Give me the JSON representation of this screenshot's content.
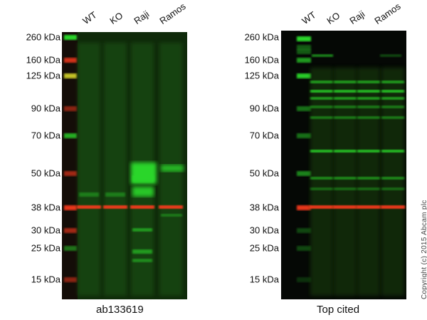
{
  "blots": [
    {
      "caption": "ab133619",
      "lanes": [
        "WT",
        "KO",
        "Raji",
        "Ramos"
      ],
      "markers": [
        "260 kDa",
        "160 kDa",
        "125 kDa",
        "90 kDa",
        "70 kDa",
        "50 kDa",
        "38 kDa",
        "30 kDa",
        "25 kDa",
        "15 kDa"
      ]
    },
    {
      "caption": "Top cited",
      "lanes": [
        "WT",
        "KO",
        "Raji",
        "Ramos"
      ],
      "markers": [
        "260 kDa",
        "160 kDa",
        "125 kDa",
        "90 kDa",
        "70 kDa",
        "50 kDa",
        "38 kDa",
        "30 kDa",
        "25 kDa",
        "15 kDa"
      ]
    }
  ],
  "copyright": "Copyright (c) 2015 Abcam plc",
  "colors": {
    "signal": "#2bd62b",
    "loading_control": "#ff3a1a",
    "background": "#0a1a06"
  }
}
